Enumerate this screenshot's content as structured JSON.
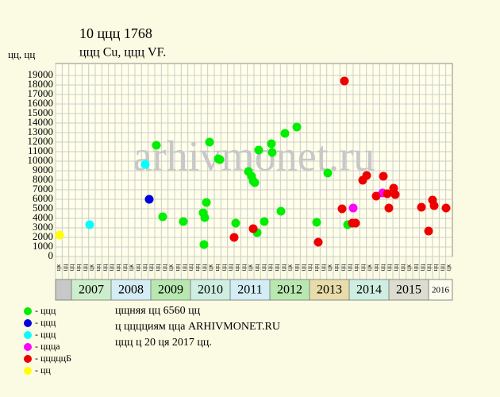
{
  "chart_data": {
    "type": "scatter",
    "title": "10 ццц 1768",
    "subtitle": "ццц Cu, ццц VF.",
    "y_label": "цц, цц",
    "watermark": "arhivmonet.ru",
    "xlim": [
      2006.6,
      2016.6
    ],
    "ylim": [
      0,
      20000
    ],
    "yticks": [
      0,
      1000,
      2000,
      3000,
      4000,
      5000,
      6000,
      7000,
      8000,
      9000,
      10000,
      11000,
      12000,
      13000,
      14000,
      15000,
      16000,
      17000,
      18000,
      19000
    ],
    "grid": true,
    "years": [
      2007,
      2008,
      2009,
      2010,
      2011,
      2012,
      2013,
      2014,
      2015,
      2016
    ],
    "year_colors": [
      "#cdeecd",
      "#d4ecf4",
      "#b8e8b0",
      "#cdeee0",
      "#d4ecf4",
      "#b8e8b0",
      "#e8dcaa",
      "#cdeee0",
      "#dcdcd0",
      "#fbfbee"
    ],
    "months": [
      "цк",
      "цц",
      "цц",
      "цц",
      "цц",
      "цк",
      "цц",
      "цц",
      "цц",
      "цц",
      "цц",
      "цк",
      "цц",
      "цц",
      "цц",
      "цц",
      "цц",
      "цк",
      "цц",
      "цц",
      "цц",
      "цц",
      "цц",
      "цк",
      "цц",
      "цц",
      "цц",
      "цц",
      "цц",
      "цк",
      "цц",
      "цц",
      "цц",
      "цц",
      "цц",
      "цк",
      "цц",
      "цц",
      "цц",
      "цц",
      "цц",
      "цк",
      "цц",
      "цц",
      "цц",
      "цц",
      "цц",
      "цк",
      "цц",
      "цц",
      "цц",
      "цц",
      "цц",
      "цк",
      "цц",
      "цц",
      "цц",
      "цц",
      "цц",
      "цк"
    ],
    "series": [
      {
        "name": "- ццц",
        "color": "#00ee00",
        "x": [
          2009.14,
          2009.3,
          2009.82,
          2010.32,
          2010.34,
          2010.36,
          2010.4,
          2010.48,
          2010.7,
          2010.74,
          2011.14,
          2011.46,
          2011.54,
          2011.58,
          2011.62,
          2011.68,
          2011.72,
          2011.86,
          2012.04,
          2012.06,
          2012.28,
          2012.38,
          2012.68,
          2013.18,
          2013.46,
          2013.96
        ],
        "values": [
          11670,
          4170,
          3670,
          4580,
          1250,
          4080,
          5670,
          12000,
          10250,
          10170,
          3500,
          8920,
          8420,
          7920,
          7750,
          2500,
          11170,
          3670,
          11830,
          10920,
          4750,
          12920,
          13580,
          3580,
          8750,
          3330
        ]
      },
      {
        "name": "- ццц",
        "color": "#0000dd",
        "x": [
          2008.96
        ],
        "values": [
          6000
        ]
      },
      {
        "name": "- ццц",
        "color": "#00ffff",
        "x": [
          2007.46,
          2008.86
        ],
        "values": [
          3330,
          9670
        ]
      },
      {
        "name": "- цццa",
        "color": "#ff00ff",
        "x": [
          2014.1,
          2014.84
        ],
        "values": [
          5080,
          6670
        ]
      },
      {
        "name": "- цццццБ",
        "color": "#ee0000",
        "x": [
          2011.1,
          2011.58,
          2013.22,
          2013.82,
          2013.88,
          2014.08,
          2014.16,
          2014.34,
          2014.44,
          2014.68,
          2014.86,
          2014.96,
          2015.0,
          2015.12,
          2015.16,
          2015.82,
          2016.0,
          2016.1,
          2016.14,
          2016.44
        ],
        "values": [
          2000,
          2920,
          1500,
          5000,
          18420,
          3500,
          3500,
          8000,
          8500,
          6330,
          8420,
          6580,
          5080,
          7170,
          6500,
          5170,
          2670,
          5920,
          5330,
          5080
        ]
      },
      {
        "name": "- цц",
        "color": "#ffff00",
        "x": [
          2006.7
        ],
        "values": [
          2250
        ]
      }
    ],
    "notes": [
      "цщняя цц 6560 цц",
      "ц цццциям цца ARHIVMONET.RU",
      "ццц ц 20 ця 2017 цц."
    ]
  }
}
